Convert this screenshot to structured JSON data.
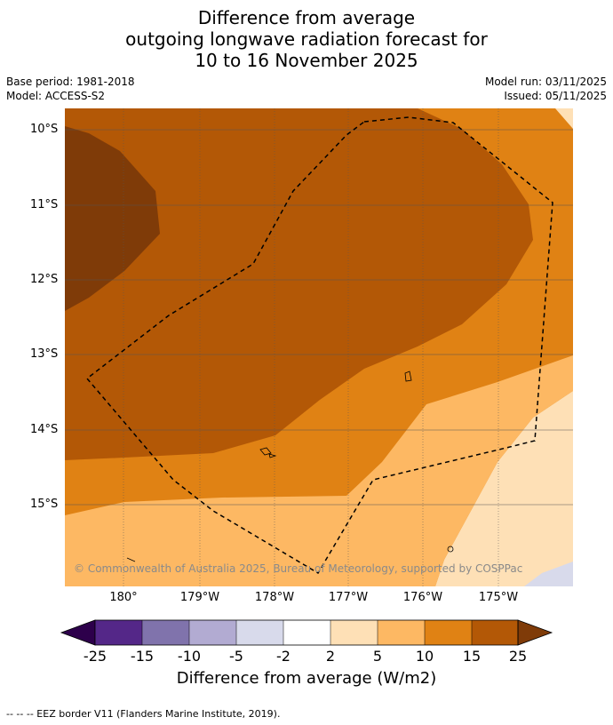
{
  "title": {
    "line1": "Difference from average",
    "line2": "outgoing longwave radiation forecast for",
    "line3": "10 to 16 November 2025"
  },
  "meta": {
    "base_period": "Base period: 1981-2018",
    "model": "Model: ACCESS-S2",
    "model_run": "Model run: 03/11/2025",
    "issued": "Issued: 05/11/2025"
  },
  "map": {
    "lat_labels": [
      "10°S",
      "11°S",
      "12°S",
      "13°S",
      "14°S",
      "15°S"
    ],
    "lon_labels": [
      "180°",
      "179°W",
      "178°W",
      "177°W",
      "176°W",
      "175°W"
    ],
    "copyright": "© Commonwealth of Australia 2025, Bureau of Meteorology, supported by COSPPac",
    "colors": {
      "c_gt25": "#7f3b08",
      "c_15_25": "#b35806",
      "c_10_15": "#e08214",
      "c_5_10": "#fdb863",
      "c_2_5": "#fee0b6",
      "c_m2_2": "#ffffff",
      "c_m5_m2": "#d8daeb",
      "c_m10_m5": "#b2abd2",
      "c_m15_m10": "#8073ac",
      "c_m25_m15": "#542788",
      "c_lt_m25": "#2d004b"
    }
  },
  "colorbar": {
    "labels": [
      "-25",
      "-15",
      "-10",
      "-5",
      "-2",
      "2",
      "5",
      "10",
      "15",
      "25"
    ],
    "title": "Difference from average (W/m2)"
  },
  "footnote": "--  --  -- EEZ border V11 (Flanders Marine Institute, 2019)."
}
